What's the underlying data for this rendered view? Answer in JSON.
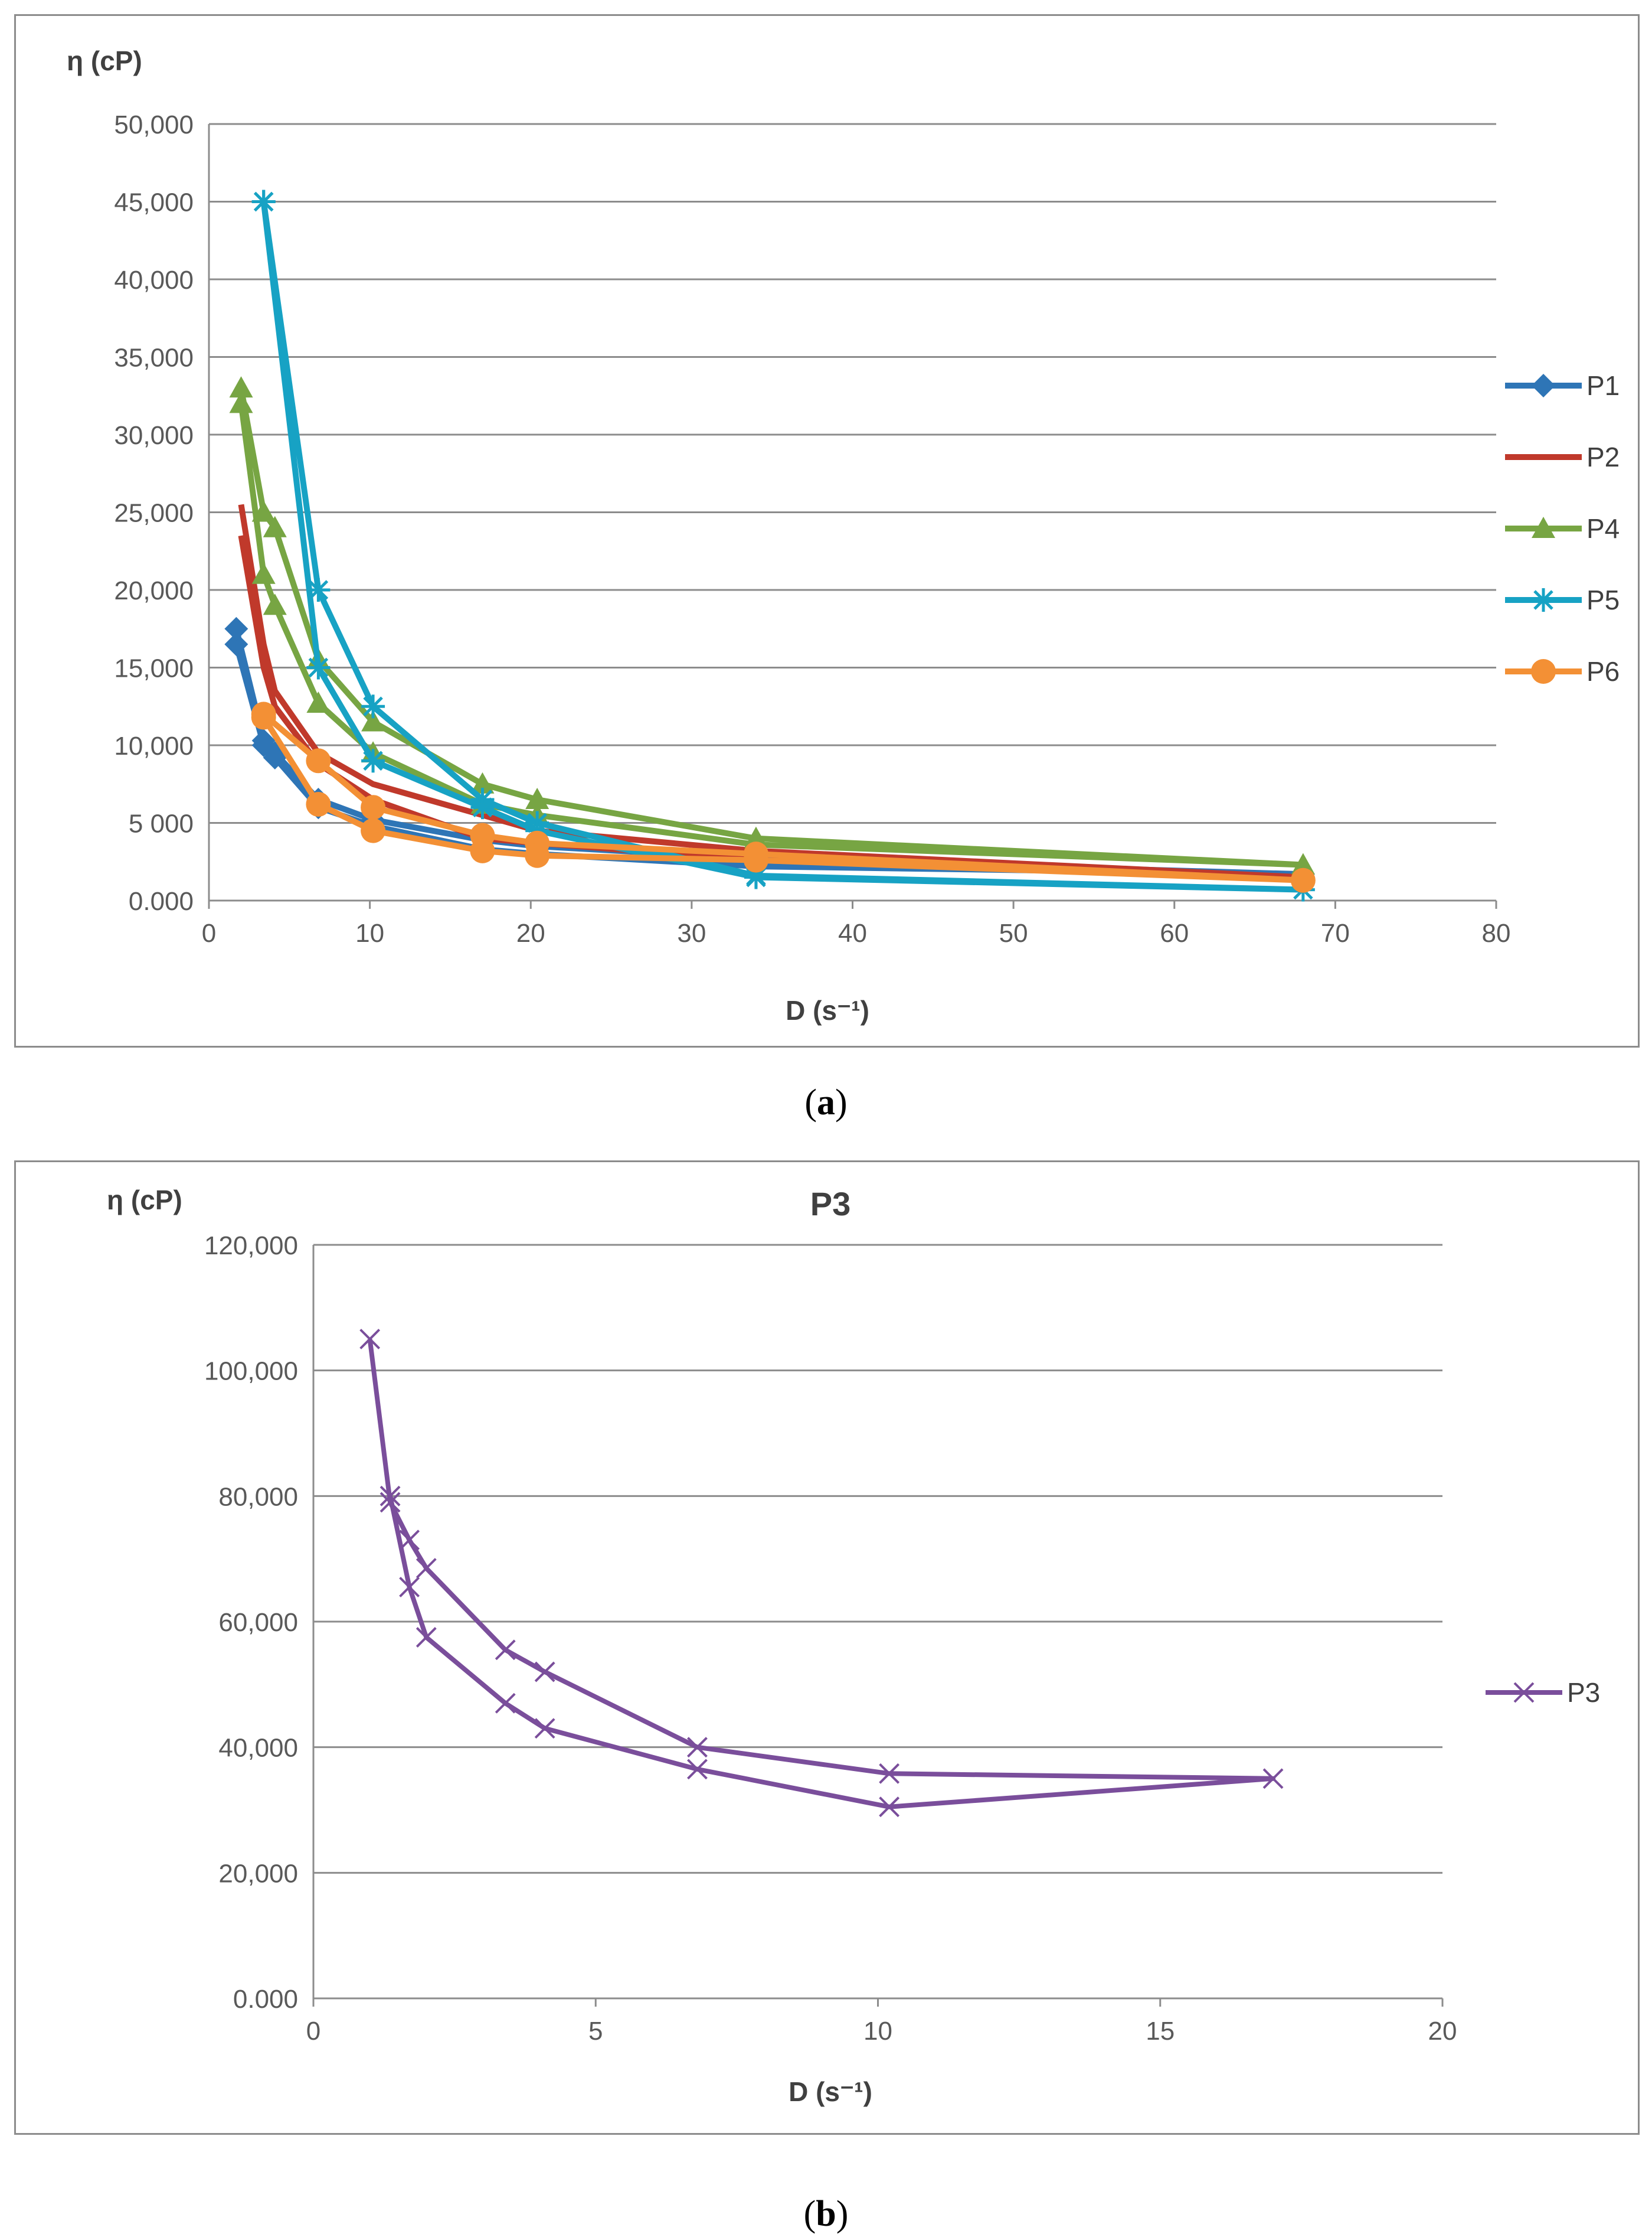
{
  "charts": [
    {
      "id": "a",
      "caption_open": "(",
      "caption_letter": "a",
      "caption_close": ")",
      "ylabel": "η (cP)",
      "xlabel": "D (s⁻¹)",
      "title": "",
      "chart_data": {
        "type": "line",
        "ylabel": "η (cP)",
        "xlabel": "D (s⁻¹)",
        "xlim": [
          0,
          80
        ],
        "ylim": [
          0,
          50000
        ],
        "x_ticks": [
          0,
          10,
          20,
          30,
          40,
          50,
          60,
          70,
          80
        ],
        "x_tick_labels": [
          "0",
          "10",
          "20",
          "30",
          "40",
          "50",
          "60",
          "70",
          "80"
        ],
        "y_ticks": [
          0,
          5000,
          10000,
          15000,
          20000,
          25000,
          30000,
          35000,
          40000,
          45000,
          50000
        ],
        "y_tick_labels": [
          "0.000",
          "5 000",
          "10,000",
          "15,000",
          "20,000",
          "25,000",
          "30,000",
          "35,000",
          "40,000",
          "45,000",
          "50,000"
        ],
        "grid": "horizontal",
        "legend": "right",
        "series": [
          {
            "name": "P1",
            "color": "#2e75b6",
            "marker": "diamond",
            "x": [
              1.7,
              3.4,
              4.1,
              6.8,
              10.2,
              17,
              20.4,
              34,
              68,
              34,
              20.4,
              17,
              10.2,
              6.8,
              4.1,
              3.4,
              1.7
            ],
            "y": [
              16500,
              10000,
              9500,
              6500,
              5200,
              3900,
              3500,
              2700,
              1700,
              2200,
              3000,
              3300,
              4800,
              6000,
              9200,
              10300,
              17500
            ]
          },
          {
            "name": "P2",
            "color": "#c0392b",
            "marker": "none",
            "x": [
              2,
              3.4,
              4.1,
              6.8,
              10.2,
              17,
              20.4,
              34,
              68,
              34,
              20.4,
              17,
              10.2,
              6.8,
              4.1,
              3.4,
              2
            ],
            "y": [
              25500,
              16500,
              13500,
              9500,
              7500,
              5500,
              4500,
              3200,
              1500,
              2600,
              3700,
              4000,
              6500,
              8800,
              12500,
              15000,
              23500
            ]
          },
          {
            "name": "P4",
            "color": "#77a543",
            "marker": "triangle",
            "x": [
              2,
              3.4,
              4.1,
              6.8,
              10.2,
              17,
              20.4,
              34,
              68,
              34,
              20.4,
              17,
              10.2,
              6.8,
              4.1,
              3.4,
              2
            ],
            "y": [
              33000,
              25000,
              24000,
              15500,
              11500,
              7500,
              6500,
              4000,
              2300,
              3600,
              5500,
              6200,
              9500,
              12700,
              19000,
              21000,
              32000
            ]
          },
          {
            "name": "P5",
            "color": "#17a2c4",
            "marker": "star",
            "x": [
              3.4,
              6.8,
              10.2,
              17,
              20.4,
              34,
              68,
              34,
              20.4,
              17,
              10.2,
              6.8,
              3.4
            ],
            "y": [
              45000,
              20000,
              12500,
              6500,
              5000,
              1600,
              700,
              1500,
              4500,
              6000,
              9000,
              15000,
              45000
            ]
          },
          {
            "name": "P6",
            "color": "#f39035",
            "marker": "circle",
            "x": [
              3.4,
              6.8,
              10.2,
              17,
              20.4,
              34,
              68,
              34,
              20.4,
              17,
              10.2,
              6.8,
              3.4
            ],
            "y": [
              12000,
              9000,
              6000,
              4200,
              3700,
              3000,
              1300,
              2600,
              2900,
              3200,
              4500,
              6200,
              11800
            ]
          }
        ]
      }
    },
    {
      "id": "b",
      "caption_open": "(",
      "caption_letter": "b",
      "caption_close": ")",
      "ylabel": "η (cP)",
      "xlabel": "D (s⁻¹)",
      "title": "P3",
      "chart_data": {
        "type": "line",
        "title": "P3",
        "ylabel": "η (cP)",
        "xlabel": "D (s⁻¹)",
        "xlim": [
          0,
          20
        ],
        "ylim": [
          0,
          120000
        ],
        "x_ticks": [
          0,
          5,
          10,
          15,
          20
        ],
        "x_tick_labels": [
          "0",
          "5",
          "10",
          "15",
          "20"
        ],
        "y_ticks": [
          0,
          20000,
          40000,
          60000,
          80000,
          100000,
          120000
        ],
        "y_tick_labels": [
          "0.000",
          "20,000",
          "40,000",
          "60,000",
          "80,000",
          "100,000",
          "120,000"
        ],
        "grid": "horizontal",
        "legend": "right",
        "series": [
          {
            "name": "P3",
            "color": "#7a4e9b",
            "marker": "x",
            "x": [
              1.0,
              1.36,
              1.7,
              2.0,
              3.4,
              4.1,
              6.8,
              10.2,
              17,
              10.2,
              6.8,
              4.1,
              3.4,
              2.0,
              1.7,
              1.36
            ],
            "y": [
              105000,
              79000,
              73000,
              68500,
              55500,
              52000,
              40000,
              35800,
              35000,
              30500,
              36500,
              43000,
              47000,
              57500,
              65500,
              80000
            ]
          }
        ]
      }
    }
  ]
}
